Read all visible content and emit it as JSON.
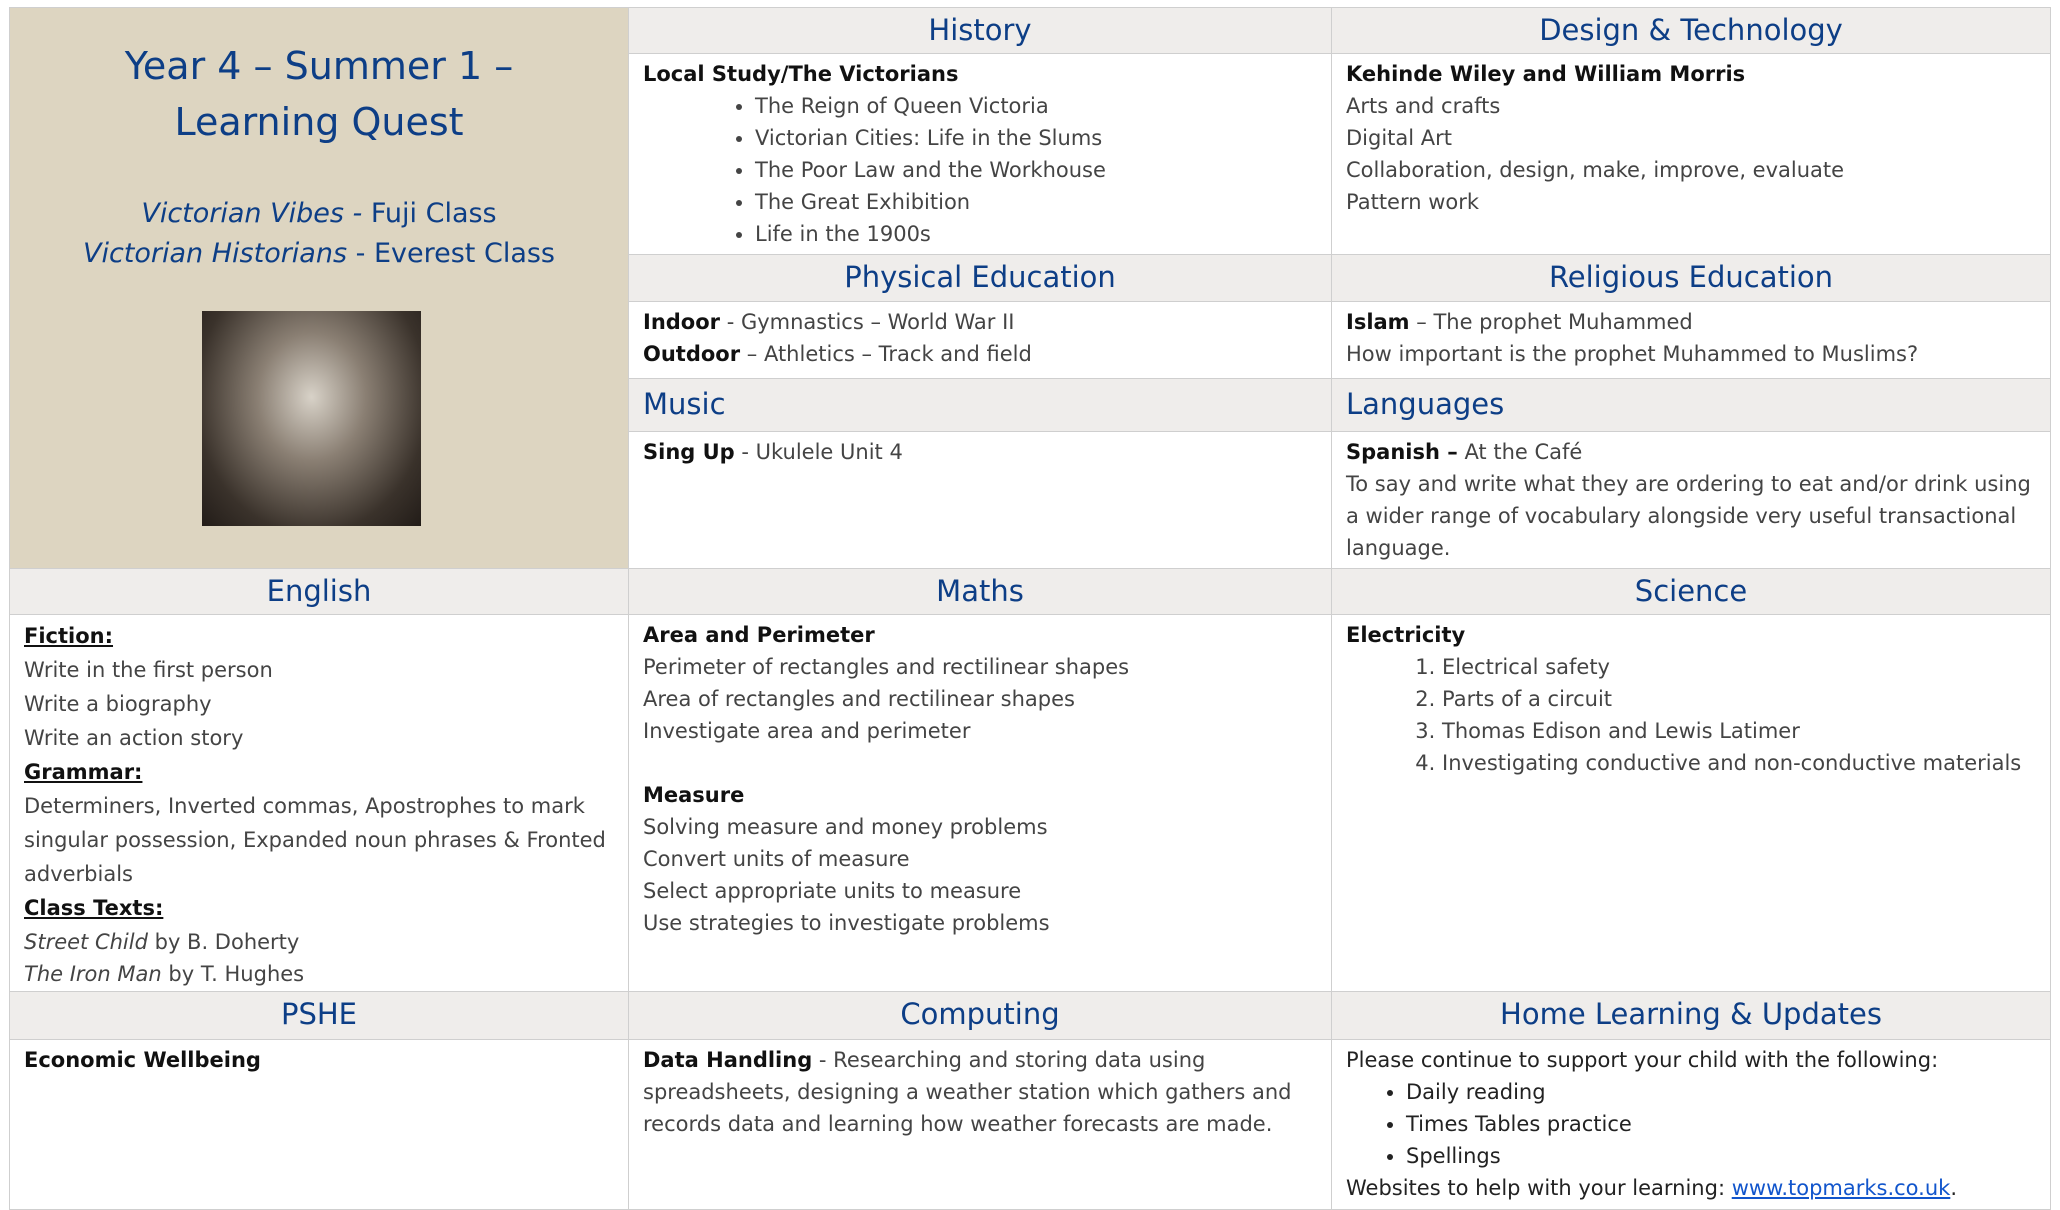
{
  "header": {
    "title": "Year 4 – Summer 1 – Learning Quest",
    "classes": [
      {
        "theme": "Victorian Vibes -",
        "name": "Fuji Class"
      },
      {
        "theme": "Victorian Historians",
        "name": "- Everest Class"
      }
    ]
  },
  "history": {
    "heading": "History",
    "subheading": "Local Study/The Victorians",
    "items": [
      "The Reign of Queen Victoria",
      "Victorian Cities: Life in the Slums",
      "The Poor Law and the Workhouse",
      "The Great Exhibition",
      "Life in the 1900s"
    ]
  },
  "design_technology": {
    "heading": "Design & Technology",
    "subheading": "Kehinde Wiley and William Morris",
    "items": [
      "Arts and crafts",
      "Digital Art",
      "Collaboration, design, make, improve, evaluate",
      "Pattern work"
    ]
  },
  "physical_education": {
    "heading": "Physical Education",
    "lines": [
      {
        "label": "Indoor",
        "text": "- Gymnastics – World War II"
      },
      {
        "label": "Outdoor",
        "text": "– Athletics – Track and field"
      }
    ]
  },
  "religious_education": {
    "heading": "Religious Education",
    "label": "Islam",
    "text": "– The prophet Muhammed",
    "question": "How important is the prophet Muhammed to Muslims?"
  },
  "music": {
    "heading": "Music",
    "label": "Sing Up",
    "text": "- Ukulele Unit 4"
  },
  "languages": {
    "heading": "Languages",
    "label": "Spanish –",
    "text": "At the Café",
    "description": "To say and write what they are ordering to eat and/or drink using a wider range of vocabulary alongside very useful transactional language."
  },
  "english": {
    "heading": "English",
    "fiction_label": "Fiction:",
    "fiction_items": [
      "Write in the first person",
      "Write a biography",
      "Write an action story"
    ],
    "grammar_label": "Grammar:",
    "grammar_text": "Determiners, Inverted commas, Apostrophes to mark singular possession, Expanded noun phrases & Fronted adverbials",
    "class_texts_label": "Class Texts:",
    "texts": [
      {
        "title": "Street Child",
        "author": "by B. Doherty"
      },
      {
        "title": "The Iron Man",
        "author": "by T. Hughes"
      }
    ]
  },
  "maths": {
    "heading": "Maths",
    "area_heading": "Area and Perimeter",
    "area_items": [
      "Perimeter of rectangles and rectilinear shapes",
      "Area of rectangles and rectilinear shapes",
      "Investigate area and perimeter"
    ],
    "measure_heading": "Measure",
    "measure_items": [
      "Solving measure and money problems",
      "Convert units of measure",
      "Select appropriate units to measure",
      "Use strategies to investigate problems"
    ]
  },
  "science": {
    "heading": "Science",
    "subheading": "Electricity",
    "items": [
      "Electrical safety",
      "Parts of a circuit",
      "Thomas Edison and Lewis Latimer",
      "Investigating conductive and non-conductive materials"
    ]
  },
  "pshe": {
    "heading": "PSHE",
    "subheading": "Economic Wellbeing"
  },
  "computing": {
    "heading": "Computing",
    "label": "Data Handling",
    "text": "- Researching and storing data using spreadsheets, designing a weather station which gathers and records data and learning how weather forecasts are made."
  },
  "home_learning": {
    "heading": "Home Learning & Updates",
    "intro": "Please continue to support your child with the following:",
    "items": [
      "Daily reading",
      "Times Tables practice",
      "Spellings"
    ],
    "websites_text": "Websites to help with your learning:",
    "link": "www.topmarks.co.uk",
    "end": "."
  }
}
